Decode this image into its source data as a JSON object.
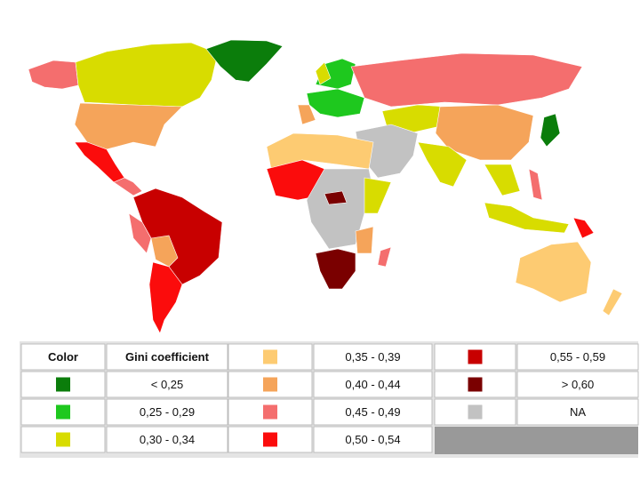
{
  "legend": {
    "header": {
      "color": "Color",
      "range": "Gini coefficient"
    },
    "entries": [
      {
        "color": "#0b7d0b",
        "range": "< 0,25"
      },
      {
        "color": "#1ec81e",
        "range": "0,25 - 0,29"
      },
      {
        "color": "#d8dc00",
        "range": "0,30 - 0,34"
      },
      {
        "color": "#fdcb72",
        "range": "0,35 - 0,39"
      },
      {
        "color": "#f5a45a",
        "range": "0,40 - 0,44"
      },
      {
        "color": "#f46e6e",
        "range": "0,45 - 0,49"
      },
      {
        "color": "#fb0c0c",
        "range": "0,50 - 0,54"
      },
      {
        "color": "#c80000",
        "range": "0,55 - 0,59"
      },
      {
        "color": "#7a0000",
        "range": "> 0,60"
      },
      {
        "color": "#c2c2c2",
        "range": "NA"
      }
    ]
  }
}
